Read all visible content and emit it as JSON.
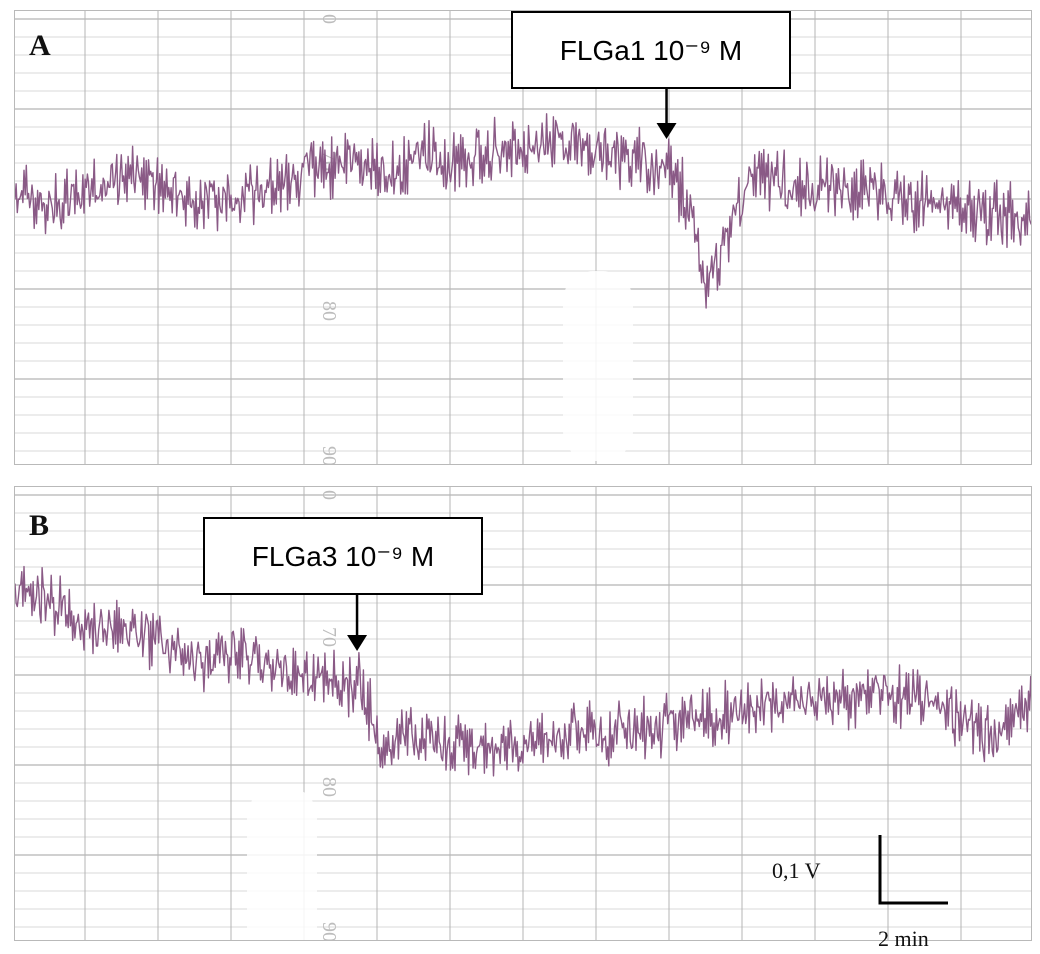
{
  "figure": {
    "panels": [
      {
        "letter": "A",
        "annotation": "FLGa1 10⁻⁹ M"
      },
      {
        "letter": "B",
        "annotation": "FLGa3 10⁻⁹ M"
      }
    ],
    "scale_bar": {
      "voltage_label": "0,1 V",
      "time_label": "2 min"
    },
    "paper_ticks": [
      "0",
      "70",
      "80",
      "90"
    ],
    "colors": {
      "trace": "#8a5a86",
      "grid_major": "#b5b5b5",
      "grid_minor": "#d9d9d9",
      "paper_text": "#bdbdbd",
      "annotation_border": "#000000"
    }
  },
  "chart_data": [
    {
      "type": "line",
      "panel": "A",
      "annotation": "FLGa1 10⁻⁹ M",
      "x": [
        0,
        1,
        2,
        3,
        4,
        5,
        6,
        7,
        8,
        9,
        10,
        11,
        12,
        13,
        14,
        15,
        16,
        17,
        18,
        19,
        20,
        21,
        22,
        23,
        24,
        25,
        26,
        27,
        28,
        29,
        30,
        31,
        32,
        33,
        34,
        35,
        36,
        37,
        38,
        39,
        40,
        41,
        42,
        43,
        44,
        45,
        46,
        47,
        48,
        49,
        50
      ],
      "series": [
        {
          "values": [
            76.0,
            76.3,
            76.7,
            76.3,
            75.6,
            75.0,
            74.9,
            75.4,
            76.0,
            76.5,
            76.6,
            75.8,
            75.6,
            75.1,
            74.6,
            74.4,
            74.0,
            74.2,
            74.5,
            74.6,
            73.1,
            74.4,
            74.0,
            73.4,
            73.3,
            73.1,
            72.8,
            72.7,
            73.1,
            73.3,
            73.8,
            74.0,
            74.2,
            76.2,
            82.0,
            78.1,
            75.2,
            74.8,
            75.3,
            75.6,
            75.2,
            75.6,
            75.8,
            76.0,
            76.3,
            76.6,
            76.6,
            76.8,
            77.1,
            77.0,
            77.4
          ]
        }
      ],
      "event_x": 32.0
    },
    {
      "type": "line",
      "panel": "B",
      "annotation": "FLGa3 10⁻⁹ M",
      "x": [
        0,
        1,
        2,
        3,
        4,
        5,
        6,
        7,
        8,
        9,
        10,
        11,
        12,
        13,
        14,
        15,
        16,
        17,
        18,
        19,
        20,
        21,
        22,
        23,
        24,
        25,
        26,
        27,
        28,
        29,
        30,
        31,
        32,
        33,
        34,
        35,
        36,
        37,
        38,
        39,
        40,
        41,
        42,
        43,
        44,
        45,
        46,
        47,
        48,
        49,
        50
      ],
      "series": [
        {
          "values": [
            71.2,
            71.6,
            71.9,
            73.0,
            73.6,
            73.3,
            73.5,
            74.1,
            74.4,
            75.6,
            74.3,
            74.6,
            75.2,
            75.8,
            76.1,
            76.4,
            76.6,
            76.9,
            80.2,
            79.8,
            80.1,
            80.4,
            80.5,
            80.6,
            80.4,
            80.2,
            79.9,
            79.7,
            79.6,
            79.5,
            79.4,
            79.2,
            79.0,
            78.8,
            78.6,
            78.3,
            78.2,
            78.0,
            77.8,
            77.6,
            77.5,
            77.4,
            77.3,
            77.3,
            77.4,
            77.6,
            78.6,
            79.2,
            80.0,
            79.1,
            77.0
          ]
        }
      ],
      "event_x": 16.8
    }
  ]
}
